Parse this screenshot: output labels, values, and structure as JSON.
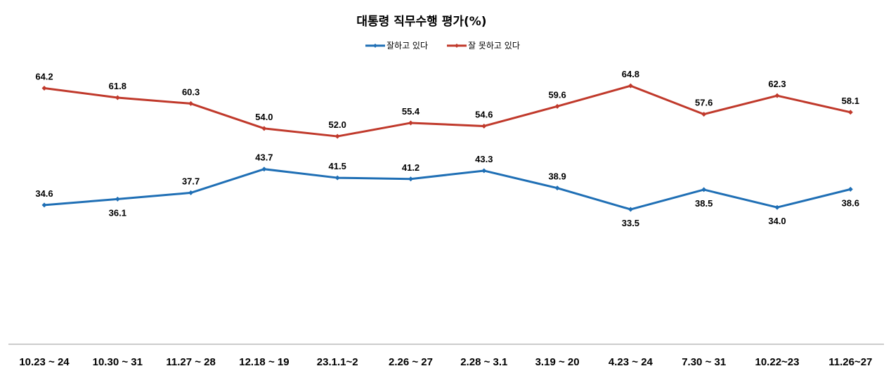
{
  "chart_data": {
    "type": "line",
    "title": "대통령 직무수행 평가(%)",
    "categories": [
      "10.23 ~ 24",
      "10.30 ~ 31",
      "11.27 ~ 28",
      "12.18 ~ 19",
      "23.1.1~2",
      "2.26 ~ 27",
      "2.28 ~ 3.1",
      "3.19 ~ 20",
      "4.23 ~ 24",
      "7.30 ~ 31",
      "10.22~23",
      "11.26~27"
    ],
    "series": [
      {
        "name": "잘하고 있다",
        "color": "#1f6fb5",
        "values": [
          34.6,
          36.1,
          37.7,
          43.7,
          41.5,
          41.2,
          43.3,
          38.9,
          33.5,
          38.5,
          34.0,
          38.6
        ],
        "labels": [
          "34.6",
          "36.1",
          "37.7",
          "43.7",
          "41.5",
          "41.2",
          "43.3",
          "38.9",
          "33.5",
          "38.5",
          "34.0",
          "38.6"
        ]
      },
      {
        "name": "잘 못하고 있다",
        "color": "#c0392b",
        "values": [
          64.2,
          61.8,
          60.3,
          54.0,
          52.0,
          55.4,
          54.6,
          59.6,
          64.8,
          57.6,
          62.3,
          58.1
        ],
        "labels": [
          "64.2",
          "61.8",
          "60.3",
          "54.0",
          "52.0",
          "55.4",
          "54.6",
          "59.6",
          "64.8",
          "57.6",
          "62.3",
          "58.1"
        ]
      }
    ],
    "legend_position": "top-center",
    "grid": false
  }
}
